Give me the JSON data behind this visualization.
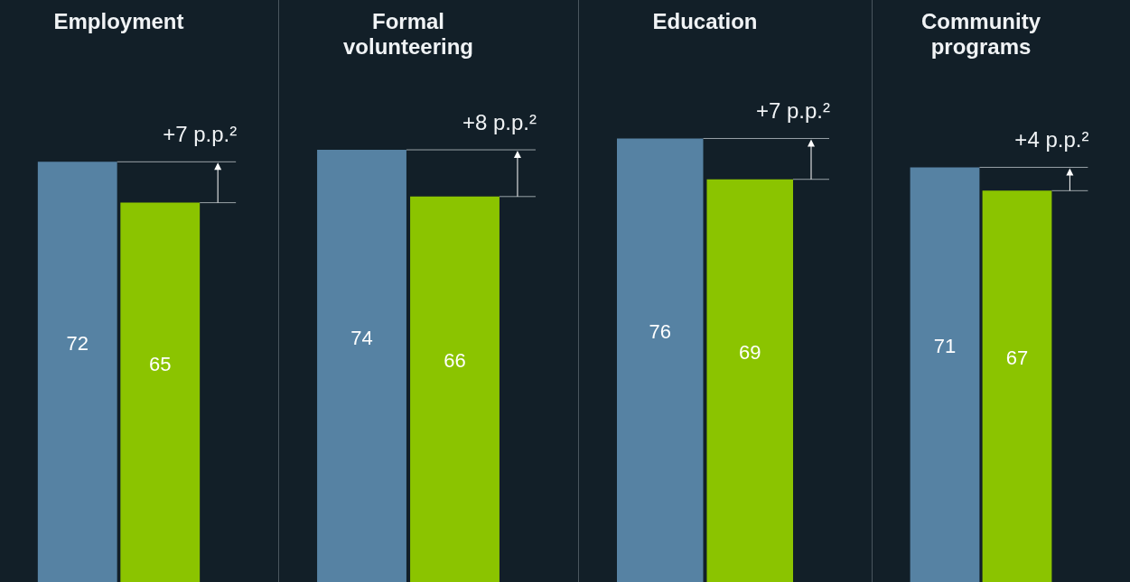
{
  "chart_data": [
    {
      "type": "bar",
      "title": "Employment",
      "categories": [
        null,
        null
      ],
      "values": [
        72,
        65
      ],
      "colors": [
        "#5682a3",
        "#8bc400"
      ],
      "data_labels": true,
      "annotations": [
        "+7 p.p.²"
      ]
    },
    {
      "type": "bar",
      "title": "Formal volunteering",
      "categories": [
        null,
        null
      ],
      "values": [
        74,
        66
      ],
      "colors": [
        "#5682a3",
        "#8bc400"
      ],
      "data_labels": true,
      "annotations": [
        "+8 p.p.²"
      ]
    },
    {
      "type": "bar",
      "title": "Education",
      "categories": [
        null,
        null
      ],
      "values": [
        76,
        69
      ],
      "colors": [
        "#5682a3",
        "#8bc400"
      ],
      "data_labels": true,
      "annotations": [
        "+7 p.p.²"
      ]
    },
    {
      "type": "bar",
      "title": "Community programs",
      "categories": [
        null,
        null
      ],
      "values": [
        71,
        67
      ],
      "colors": [
        "#5682a3",
        "#8bc400"
      ],
      "data_labels": true,
      "annotations": [
        "+4 p.p.²"
      ]
    }
  ]
}
